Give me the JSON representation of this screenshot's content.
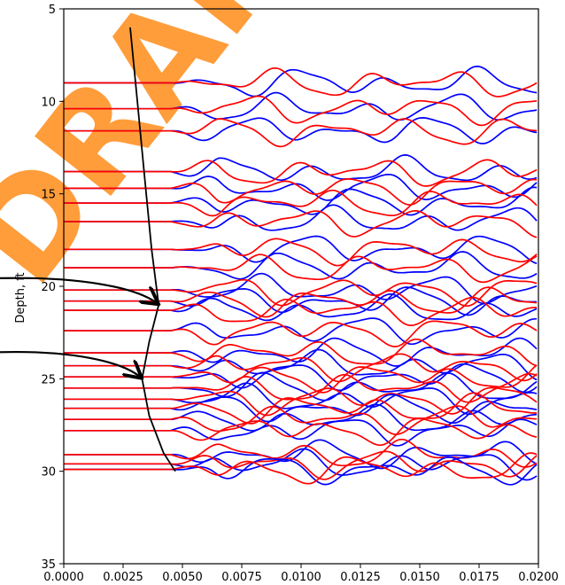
{
  "chart_data": {
    "type": "line",
    "title": "",
    "xlabel": "",
    "ylabel": "Depth, ft",
    "xlim": [
      0.0,
      0.02
    ],
    "ylim": [
      35,
      5
    ],
    "y_inverted": true,
    "grid": false,
    "legend": "none",
    "watermark": "DRAFT",
    "x_ticks": [
      "0.0000",
      "0.0025",
      "0.0050",
      "0.0075",
      "0.0100",
      "0.0125",
      "0.0150",
      "0.0175",
      "0.0200"
    ],
    "y_ticks": [
      "5",
      "10",
      "15",
      "20",
      "25",
      "30",
      "35"
    ],
    "colors": {
      "series_a": "#0000ff",
      "series_b": "#ff0000",
      "profile": "#000000",
      "watermark": "#ff8c1a"
    },
    "trace_depths": [
      9.0,
      10.4,
      11.6,
      13.8,
      14.7,
      15.5,
      16.5,
      18.0,
      19.0,
      20.2,
      20.8,
      21.3,
      22.4,
      23.6,
      24.3,
      24.9,
      25.5,
      26.1,
      26.6,
      27.2,
      27.8,
      29.1,
      29.6,
      29.9
    ],
    "profile": {
      "depth": [
        6.0,
        10.0,
        14.0,
        18.0,
        20.0,
        21.0,
        23.0,
        25.0,
        27.0,
        29.0,
        30.0
      ],
      "value": [
        0.0028,
        0.0031,
        0.0034,
        0.0037,
        0.0039,
        0.004,
        0.0036,
        0.0033,
        0.0036,
        0.0042,
        0.0047
      ]
    },
    "annotations": [
      {
        "depth": 21.0,
        "value": 0.004
      },
      {
        "depth": 25.0,
        "value": 0.0033
      }
    ]
  }
}
